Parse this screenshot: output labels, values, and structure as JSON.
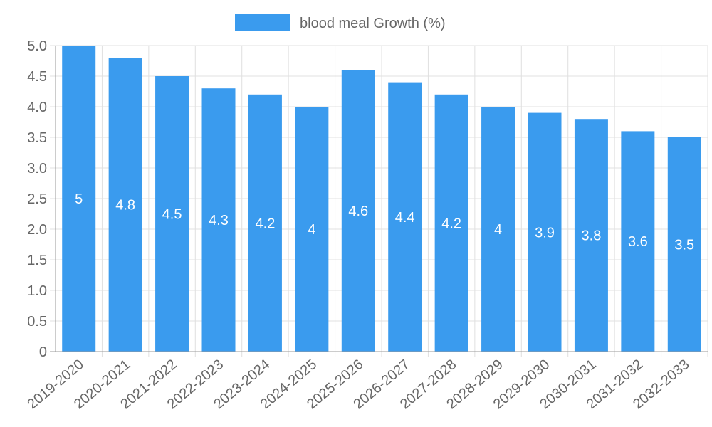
{
  "chart_data": {
    "type": "bar",
    "categories": [
      "2019-2020",
      "2020-2021",
      "2021-2022",
      "2022-2023",
      "2023-2024",
      "2024-2025",
      "2025-2026",
      "2026-2027",
      "2027-2028",
      "2028-2029",
      "2029-2030",
      "2030-2031",
      "2031-2032",
      "2032-2033"
    ],
    "series": [
      {
        "name": "blood meal Growth (%)",
        "values": [
          5,
          4.8,
          4.5,
          4.3,
          4.2,
          4,
          4.6,
          4.4,
          4.2,
          4,
          3.9,
          3.8,
          3.6,
          3.5
        ]
      }
    ],
    "data_labels": [
      "5",
      "4.8",
      "4.5",
      "4.3",
      "4.2",
      "4",
      "4.6",
      "4.4",
      "4.2",
      "4",
      "3.9",
      "3.8",
      "3.6",
      "3.5"
    ],
    "y_ticks": [
      "0",
      "0.5",
      "1.0",
      "1.5",
      "2.0",
      "2.5",
      "3.0",
      "3.5",
      "4.0",
      "4.5",
      "5.0"
    ],
    "ylim": [
      0,
      5
    ],
    "xlabel": "",
    "ylabel": "",
    "grid": true,
    "legend_position": "top-center",
    "colors": {
      "bar": "#3a9bee",
      "grid": "#e0e0e0",
      "axis": "#999999",
      "tick_text": "#666666",
      "label_text": "#ffffff"
    }
  }
}
